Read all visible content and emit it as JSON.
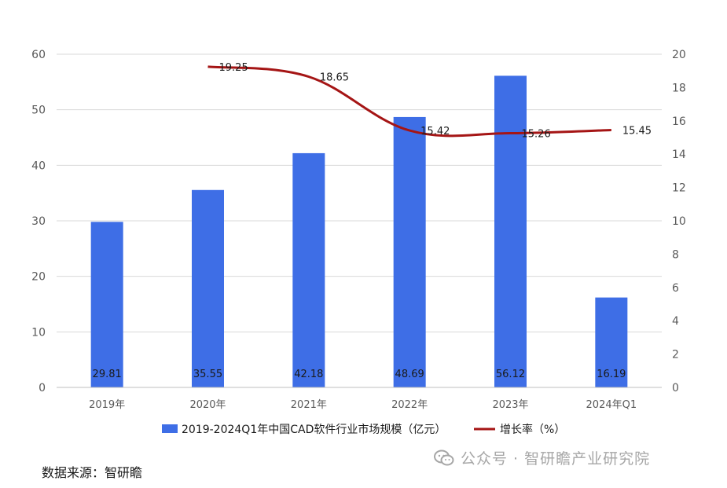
{
  "chart_data": {
    "type": "bar",
    "categories": [
      "2019年",
      "2020年",
      "2021年",
      "2022年",
      "2023年",
      "2024年Q1"
    ],
    "series": [
      {
        "name": "2019-2024Q1年中国CAD软件行业市场规模（亿元）",
        "type": "bar",
        "axis": "left",
        "values": [
          29.81,
          35.55,
          42.18,
          48.69,
          56.12,
          16.19
        ],
        "labels": [
          "29.81",
          "35.55",
          "42.18",
          "48.69",
          "56.12",
          "16.19"
        ],
        "color": "#3e6ee6"
      },
      {
        "name": "增长率（%）",
        "type": "line",
        "axis": "right",
        "values": [
          null,
          19.25,
          18.65,
          15.42,
          15.26,
          15.45
        ],
        "labels": [
          "",
          "19.25",
          "18.65",
          "15.42",
          "15.26",
          "15.45"
        ],
        "color": "#a51515"
      }
    ],
    "y_left": {
      "min": 0,
      "max": 60,
      "ticks": [
        "0",
        "10",
        "20",
        "30",
        "40",
        "50",
        "60"
      ]
    },
    "y_right": {
      "min": 0,
      "max": 20,
      "ticks": [
        "0",
        "2",
        "4",
        "6",
        "8",
        "10",
        "12",
        "14",
        "16",
        "18",
        "20"
      ]
    },
    "grid": true,
    "legend": "bottom"
  },
  "source_text": "数据来源：智研瞻",
  "watermark": {
    "text": "公众号 · 智研瞻产业研究院",
    "icon": "wechat-icon"
  }
}
